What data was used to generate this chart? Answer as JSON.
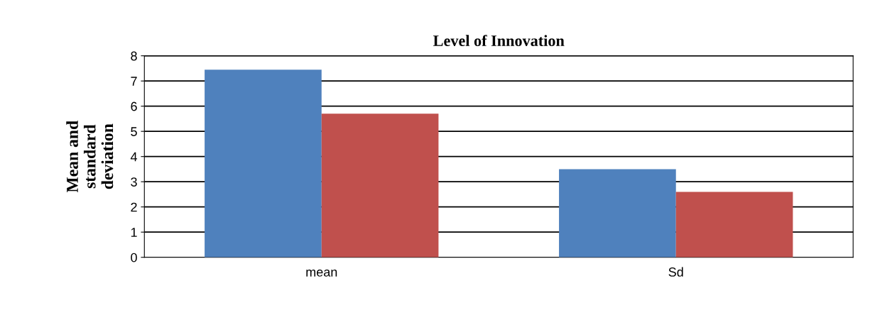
{
  "chart_data": {
    "type": "bar",
    "title": "Level of Innovation",
    "ylabel": "Mean and\nstandard\ndeviation",
    "categories": [
      "mean",
      "Sd"
    ],
    "series": [
      {
        "color": "#4f81bd",
        "values": [
          7.45,
          3.5
        ]
      },
      {
        "color": "#c0504d",
        "values": [
          5.7,
          2.6
        ]
      }
    ],
    "ylim": [
      0,
      8
    ],
    "yticks": [
      0,
      1,
      2,
      3,
      4,
      5,
      6,
      7,
      8
    ],
    "grid": "y",
    "legend": false
  }
}
